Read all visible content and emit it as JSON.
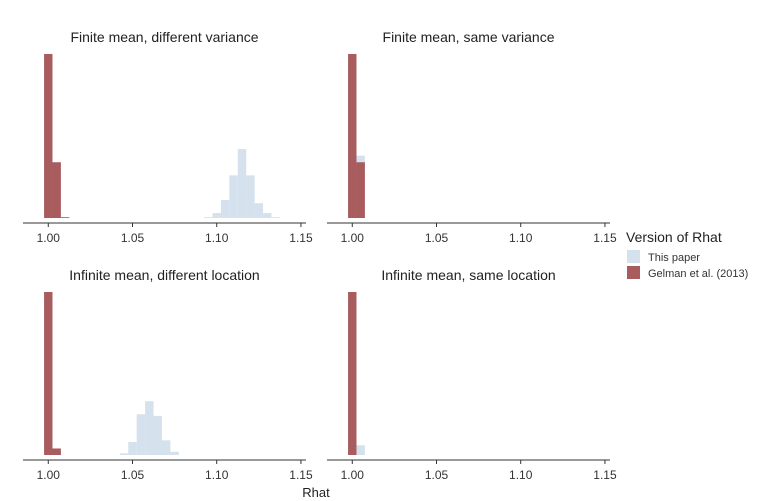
{
  "chart_data": {
    "type": "histogram",
    "xlabel": "Rhat",
    "legend": {
      "title": "Version of Rhat",
      "position": "right",
      "entries": [
        {
          "name": "This paper",
          "color": "#d5e1ec"
        },
        {
          "name": "Gelman et al. (2013)",
          "color": "#a85c5e"
        }
      ]
    },
    "xlim": [
      0.985,
      1.153
    ],
    "x_ticks": [
      1.0,
      1.05,
      1.1,
      1.15
    ],
    "x_tick_labels": [
      "1.00",
      "1.05",
      "1.10",
      "1.15"
    ],
    "bin_width": 0.005,
    "panels": [
      {
        "title": "Finite mean, different variance",
        "series": [
          {
            "name": "Gelman et al. (2013)",
            "bins": [
              {
                "x": 1.0,
                "height": 1.0
              },
              {
                "x": 1.005,
                "height": 0.34
              },
              {
                "x": 1.01,
                "height": 0.005
              }
            ]
          },
          {
            "name": "This paper",
            "bins": [
              {
                "x": 1.095,
                "height": 0.005
              },
              {
                "x": 1.1,
                "height": 0.03
              },
              {
                "x": 1.105,
                "height": 0.11
              },
              {
                "x": 1.11,
                "height": 0.26
              },
              {
                "x": 1.115,
                "height": 0.42
              },
              {
                "x": 1.12,
                "height": 0.26
              },
              {
                "x": 1.125,
                "height": 0.09
              },
              {
                "x": 1.13,
                "height": 0.03
              },
              {
                "x": 1.135,
                "height": 0.005
              }
            ]
          }
        ]
      },
      {
        "title": "Finite mean, same variance",
        "series": [
          {
            "name": "Gelman et al. (2013)",
            "bins": [
              {
                "x": 1.0,
                "height": 1.0
              },
              {
                "x": 1.005,
                "height": 0.34
              }
            ]
          },
          {
            "name": "This paper",
            "bins": [
              {
                "x": 1.0,
                "height": 0.95
              },
              {
                "x": 1.005,
                "height": 0.38
              }
            ]
          }
        ]
      },
      {
        "title": "Infinite mean, different location",
        "series": [
          {
            "name": "Gelman et al. (2013)",
            "bins": [
              {
                "x": 1.0,
                "height": 1.0
              },
              {
                "x": 1.005,
                "height": 0.04
              }
            ]
          },
          {
            "name": "This paper",
            "bins": [
              {
                "x": 1.045,
                "height": 0.01
              },
              {
                "x": 1.05,
                "height": 0.08
              },
              {
                "x": 1.055,
                "height": 0.25
              },
              {
                "x": 1.06,
                "height": 0.33
              },
              {
                "x": 1.065,
                "height": 0.24
              },
              {
                "x": 1.07,
                "height": 0.09
              },
              {
                "x": 1.075,
                "height": 0.02
              }
            ]
          }
        ]
      },
      {
        "title": "Infinite mean, same location",
        "series": [
          {
            "name": "Gelman et al. (2013)",
            "bins": [
              {
                "x": 1.0,
                "height": 1.0
              }
            ]
          },
          {
            "name": "This paper",
            "bins": [
              {
                "x": 1.0,
                "height": 0.9
              },
              {
                "x": 1.005,
                "height": 0.06
              }
            ]
          }
        ]
      }
    ]
  }
}
